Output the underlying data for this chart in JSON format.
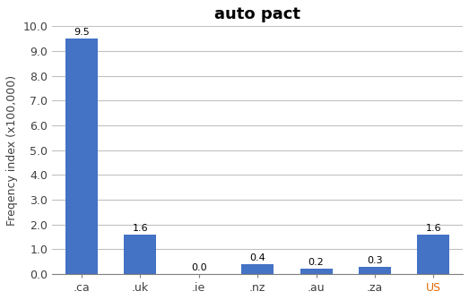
{
  "title": "auto pact",
  "categories": [
    ".ca",
    ".uk",
    ".ie",
    ".nz",
    ".au",
    ".za",
    "US"
  ],
  "values": [
    9.5,
    1.6,
    0.0,
    0.4,
    0.2,
    0.3,
    1.6
  ],
  "bar_color": "#4472C4",
  "us_label_color": "#E26B0A",
  "ylabel": "Freqency index (x100,000)",
  "ylim": [
    0,
    10.0
  ],
  "yticks": [
    0.0,
    1.0,
    2.0,
    3.0,
    4.0,
    5.0,
    6.0,
    7.0,
    8.0,
    9.0,
    10.0
  ],
  "ytick_labels": [
    "0.0",
    "1.0",
    "2.0",
    "3.0",
    "4.0",
    "5.0",
    "6.0",
    "7.0",
    "8.0",
    "9.0",
    "10.0"
  ],
  "label_fontsize": 9,
  "title_fontsize": 13,
  "bar_label_fontsize": 8,
  "background_color": "#FFFFFF",
  "grid_color": "#C0C0C0",
  "tick_label_color": "#404040"
}
